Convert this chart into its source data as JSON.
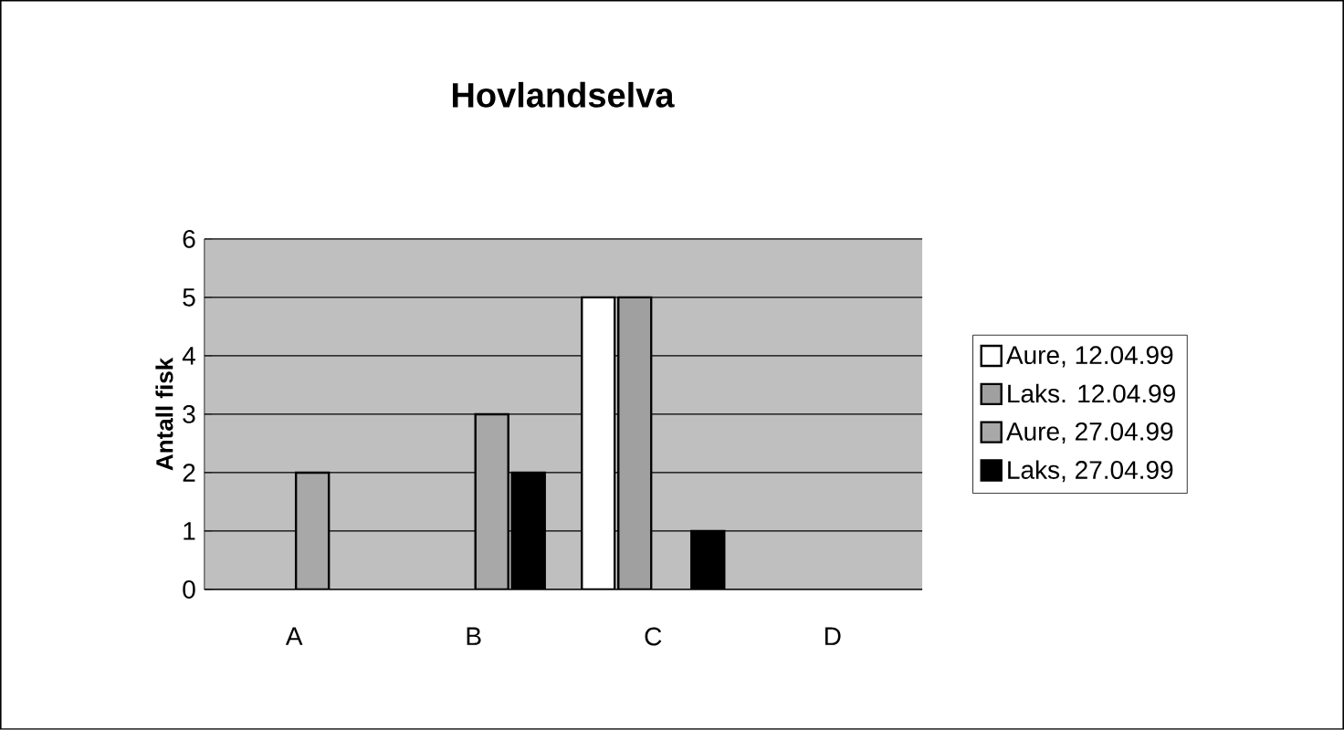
{
  "chart_data": {
    "type": "bar",
    "title": "Hovlandselva",
    "ylabel": "Antall fisk",
    "categories": [
      "A",
      "B",
      "C",
      "D"
    ],
    "series": [
      {
        "name": "Aure, 12.04.99",
        "color": "#ffffff",
        "values": [
          null,
          null,
          5,
          null
        ]
      },
      {
        "name": "Laks. 12.04.99",
        "color": "#a0a0a0",
        "values": [
          null,
          null,
          5,
          null
        ]
      },
      {
        "name": "Aure, 27.04.99",
        "color": "#a8a8a8",
        "values": [
          2,
          3,
          null,
          null
        ]
      },
      {
        "name": "Laks, 27.04.99",
        "color": "#000000",
        "values": [
          null,
          2,
          1,
          null
        ]
      }
    ],
    "ylim": [
      0,
      6
    ],
    "yticks": [
      0,
      1,
      2,
      3,
      4,
      5,
      6
    ],
    "grid": "y",
    "legend": "right"
  }
}
